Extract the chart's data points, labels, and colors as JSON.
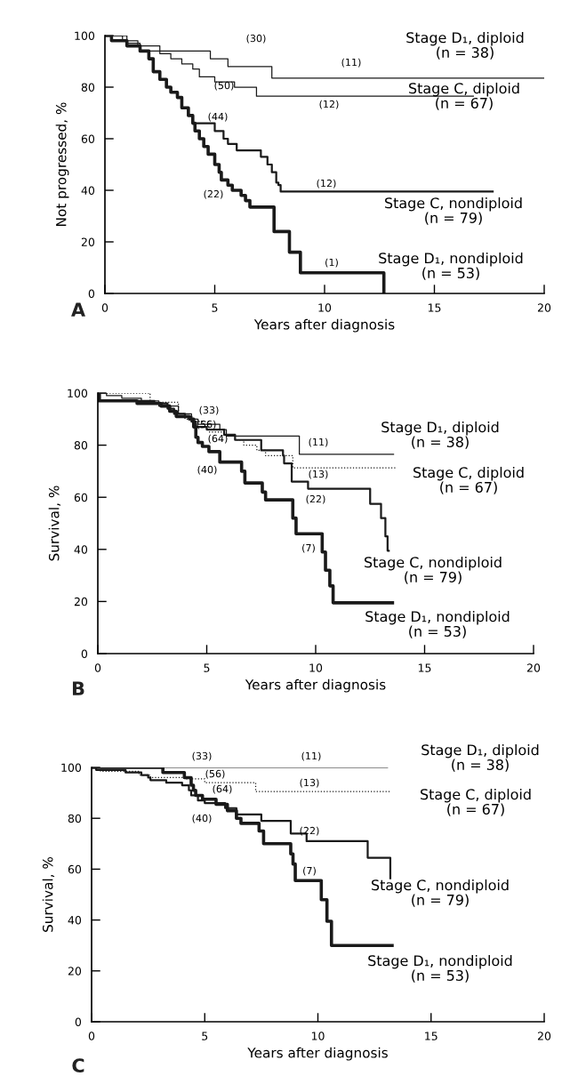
{
  "chart_data": [
    {
      "type": "step",
      "xlabel": "Years after diagnosis",
      "ylabel": "Not progressed, %",
      "xlim": [
        0,
        20
      ],
      "ylim": [
        0,
        100
      ],
      "xticks": [
        0,
        5,
        10,
        15,
        20
      ],
      "yticks": [
        0,
        20,
        40,
        60,
        80,
        100
      ],
      "grid": false,
      "marker": "none",
      "series": [
        {
          "color": "#1a1a1a",
          "line_style": "solid",
          "x": [
            0,
            1.0,
            1.6,
            4.8,
            5.6,
            7.6,
            20
          ],
          "values": [
            100,
            97,
            94,
            91,
            88,
            83.5,
            83.5
          ]
        },
        {
          "color": "#1a1a1a",
          "line_style": "solid",
          "x": [
            0,
            0.8,
            1.5,
            2.5,
            3.0,
            3.5,
            4.0,
            4.3,
            5.0,
            5.9,
            6.9,
            16.8
          ],
          "values": [
            100,
            98,
            96,
            93,
            91,
            89,
            87,
            84,
            82,
            80,
            76.5,
            76.5
          ]
        },
        {
          "color": "#1a1a1a",
          "line_style": "solid",
          "x": [
            0,
            0.3,
            1.0,
            1.6,
            2.0,
            2.2,
            2.5,
            2.8,
            3.0,
            3.3,
            3.5,
            3.8,
            4.0,
            5.0,
            5.4,
            5.6,
            6.0,
            7.1,
            7.4,
            7.6,
            7.8,
            7.9,
            8.0,
            17.7
          ],
          "values": [
            100,
            98,
            96,
            94,
            91,
            86,
            83,
            80,
            78,
            76,
            72,
            69,
            66,
            63,
            60,
            58,
            55.5,
            53,
            50,
            47,
            43,
            42,
            39.5,
            39.5
          ]
        },
        {
          "color": "#1a1a1a",
          "line_style": "solid",
          "x": [
            0,
            0.3,
            1.0,
            1.6,
            2.0,
            2.2,
            2.5,
            2.8,
            3.0,
            3.3,
            3.5,
            3.8,
            4.0,
            4.1,
            4.3,
            4.5,
            4.7,
            5.0,
            5.2,
            5.3,
            5.6,
            5.8,
            6.2,
            6.4,
            6.6,
            7.7,
            8.4,
            8.9,
            12.7
          ],
          "values": [
            100,
            98,
            96,
            94,
            91,
            86,
            83,
            80,
            78,
            76,
            72,
            69,
            66,
            63,
            60,
            57,
            54,
            50,
            47,
            44,
            42,
            40,
            38,
            36,
            33.5,
            24,
            16,
            8,
            0
          ]
        }
      ],
      "annotations": [
        "(30)",
        "(11)",
        "(50)",
        "(12)",
        "(44)",
        "(12)",
        "(22)",
        "(1)",
        "Stage D₁, diploid\n(n = 38)",
        "Stage C, diploid\n(n = 67)",
        "Stage C, nondiploid\n(n = 79)",
        "Stage D₁, nondiploid\n(n = 53)",
        "A"
      ]
    },
    {
      "type": "step",
      "xlabel": "Years after diagnosis",
      "ylabel": "Survival, %",
      "xlim": [
        0,
        20
      ],
      "ylim": [
        0,
        100
      ],
      "xticks": [
        0,
        5,
        10,
        15,
        20
      ],
      "yticks": [
        0,
        20,
        40,
        60,
        80,
        100
      ],
      "grid": false,
      "marker": "none",
      "series": [
        {
          "color": "#1a1a1a",
          "line_style": "solid",
          "x": [
            0,
            0.4,
            1.1,
            2.0,
            2.8,
            3.7,
            4.3,
            4.6,
            5.6,
            5.9,
            9.25,
            13.6
          ],
          "values": [
            100,
            99,
            98,
            97,
            95,
            92,
            90,
            88,
            86,
            83.5,
            76.5,
            76.5
          ]
        },
        {
          "color": "#1a1a1a",
          "line_style": "dotted",
          "x": [
            0,
            2.4,
            3.7,
            4.0,
            4.5,
            5.1,
            5.8,
            6.3,
            6.7,
            7.3,
            7.7,
            8.95,
            13.7
          ],
          "values": [
            100,
            96.5,
            92,
            90,
            89,
            85,
            84,
            82,
            80,
            78,
            76,
            71.3,
            71.3
          ]
        },
        {
          "color": "#1a1a1a",
          "line_style": "solid",
          "x": [
            0,
            0.1,
            2.6,
            3.2,
            3.5,
            4.0,
            4.3,
            4.5,
            5.0,
            5.8,
            6.3,
            7.5,
            8.5,
            8.55,
            8.9,
            9.65,
            12.5,
            13.0,
            13.2,
            13.3,
            13.4
          ],
          "values": [
            100,
            97,
            96,
            94,
            92,
            91,
            89,
            87,
            86,
            84,
            82,
            78,
            76,
            73,
            66,
            63.3,
            57.5,
            52,
            45,
            39.5,
            39.5
          ]
        },
        {
          "color": "#1a1a1a",
          "line_style": "solid",
          "x": [
            0,
            0.05,
            1.8,
            2.9,
            3.3,
            3.6,
            4.2,
            4.4,
            4.5,
            4.6,
            4.8,
            5.1,
            5.6,
            6.6,
            6.75,
            7.55,
            7.7,
            8.95,
            9.1,
            10.3,
            10.45,
            10.65,
            10.8,
            13.6
          ],
          "values": [
            100,
            97,
            96,
            95,
            93,
            91,
            90,
            87,
            83,
            81,
            79.5,
            77.5,
            73.5,
            70,
            65.5,
            62,
            59,
            52,
            46,
            39,
            32,
            26,
            19.5,
            19.5
          ]
        }
      ],
      "annotations": [
        "(33)",
        "(56)",
        "(64)",
        "(40)",
        "(11)",
        "(13)",
        "(22)",
        "(7)",
        "Stage D₁, diploid\n(n = 38)",
        "Stage C, diploid\n(n = 67)",
        "Stage C, nondiploid\n(n = 79)",
        "Stage D₁, nondiploid\n(n = 53)",
        "B"
      ]
    },
    {
      "type": "step",
      "xlabel": "Years after diagnosis",
      "ylabel": "Survival, %",
      "xlim": [
        0,
        20
      ],
      "ylim": [
        0,
        100
      ],
      "xticks": [
        0,
        5,
        10,
        15,
        20
      ],
      "yticks": [
        0,
        20,
        40,
        60,
        80,
        100
      ],
      "grid": false,
      "marker": "none",
      "series": [
        {
          "color": "#1a1a1a",
          "line_style": "solid",
          "x": [
            0,
            13.1
          ],
          "values": [
            100,
            100
          ]
        },
        {
          "color": "#1a1a1a",
          "line_style": "dotted",
          "x": [
            0,
            0.4,
            2.1,
            2.6,
            4.1,
            5.0,
            7.25,
            13.2
          ],
          "values": [
            100,
            98.5,
            97,
            96,
            95.5,
            94,
            90.5,
            90.5
          ]
        },
        {
          "color": "#1a1a1a",
          "line_style": "solid",
          "x": [
            0,
            0.2,
            1.5,
            2.2,
            2.5,
            2.6,
            3.3,
            4.0,
            4.3,
            4.4,
            4.7,
            5.0,
            5.9,
            6.4,
            7.5,
            8.8,
            9.5,
            12.2,
            13.2,
            13.2
          ],
          "values": [
            100,
            99,
            98,
            97,
            96,
            95,
            94,
            93,
            91,
            89,
            87,
            86,
            84,
            81.5,
            79,
            74,
            71,
            64.5,
            56,
            56
          ]
        },
        {
          "color": "#1a1a1a",
          "line_style": "solid",
          "x": [
            0,
            3.15,
            4.1,
            4.4,
            4.5,
            4.6,
            4.9,
            5.5,
            6.0,
            6.4,
            6.6,
            7.4,
            7.6,
            8.8,
            8.9,
            9.0,
            10.15,
            10.4,
            10.6,
            13.35
          ],
          "values": [
            100,
            98,
            96,
            93,
            91,
            89,
            87.5,
            85.5,
            83,
            80,
            78,
            75,
            70,
            66,
            62,
            55.5,
            48,
            39.5,
            30,
            30
          ]
        }
      ],
      "annotations": [
        "(33)",
        "(11)",
        "(56)",
        "(64)",
        "(13)",
        "(40)",
        "(22)",
        "(7)",
        "Stage D₁, diploid\n(n = 38)",
        "Stage C, diploid\n(n = 67)",
        "Stage C, nondiploid\n(n = 79)",
        "Stage D₁, nondiploid\n(n = 53)",
        "C"
      ]
    }
  ]
}
